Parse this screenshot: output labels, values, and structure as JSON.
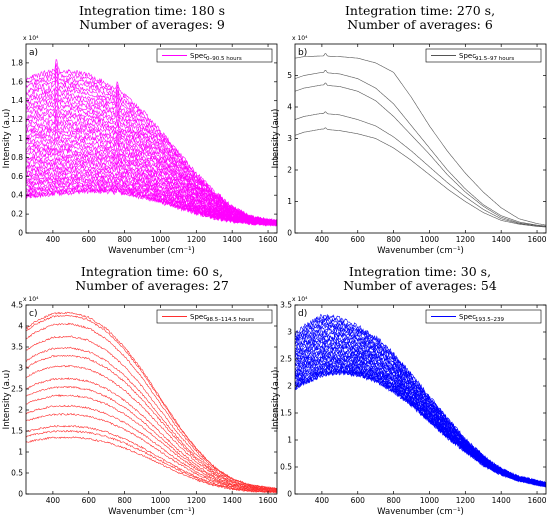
{
  "chart_data": [
    {
      "type": "line",
      "title": [
        "Integration time: 180 s",
        "Number of averages: 9"
      ],
      "panel_label": "a)",
      "legend": {
        "text": "Spec",
        "subscript": "0–90.5 hours",
        "position": "top-right"
      },
      "color": "#ff00ff",
      "xlabel": "Wavenumber (cm⁻¹)",
      "ylabel": "Intensity (a.u)",
      "multiplier": "x 10⁴",
      "xlim": [
        250,
        1650
      ],
      "ylim": [
        0,
        2
      ],
      "xticks": [
        400,
        600,
        800,
        1000,
        1200,
        1400,
        1600
      ],
      "yticks": [
        0,
        0.2,
        0.4,
        0.6,
        0.8,
        1,
        1.2,
        1.4,
        1.6,
        1.8
      ],
      "x": [
        250,
        300,
        400,
        500,
        600,
        700,
        800,
        900,
        1000,
        1100,
        1200,
        1300,
        1400,
        1500,
        1600,
        1650
      ],
      "envelope_upper": [
        1.62,
        1.66,
        1.72,
        1.71,
        1.67,
        1.58,
        1.46,
        1.29,
        1.08,
        0.85,
        0.63,
        0.43,
        0.27,
        0.17,
        0.13,
        0.12
      ],
      "envelope_lower": [
        0.38,
        0.39,
        0.41,
        0.43,
        0.44,
        0.44,
        0.42,
        0.38,
        0.33,
        0.27,
        0.21,
        0.16,
        0.13,
        0.11,
        0.1,
        0.1
      ],
      "series_count": 40,
      "peaks": [
        420,
        760,
        1330
      ]
    },
    {
      "type": "line",
      "title": [
        "Integration time: 270 s,",
        "Number of averages: 6"
      ],
      "panel_label": "b)",
      "legend": {
        "text": "Spec",
        "subscript": "91.5–97 hours",
        "position": "top-right"
      },
      "color": "#555555",
      "xlabel": "Wavenumber (cm⁻¹)",
      "ylabel": "Intensity (a.u)",
      "multiplier": "x 10⁴",
      "xlim": [
        250,
        1650
      ],
      "ylim": [
        0,
        6
      ],
      "xticks": [
        400,
        600,
        800,
        1000,
        1200,
        1400,
        1600
      ],
      "yticks": [
        0,
        1,
        2,
        3,
        4,
        5
      ],
      "x": [
        250,
        300,
        400,
        500,
        600,
        700,
        800,
        900,
        1000,
        1100,
        1200,
        1300,
        1400,
        1500,
        1600,
        1650
      ],
      "series": [
        {
          "values": [
            5.55,
            5.6,
            5.62,
            5.6,
            5.55,
            5.4,
            5.1,
            4.3,
            3.4,
            2.6,
            1.9,
            1.3,
            0.8,
            0.45,
            0.3,
            0.25
          ]
        },
        {
          "values": [
            4.9,
            5.0,
            5.1,
            5.05,
            4.9,
            4.6,
            4.1,
            3.4,
            2.7,
            2.0,
            1.4,
            0.9,
            0.55,
            0.35,
            0.25,
            0.22
          ]
        },
        {
          "values": [
            4.5,
            4.6,
            4.7,
            4.65,
            4.5,
            4.2,
            3.7,
            3.1,
            2.5,
            1.85,
            1.3,
            0.85,
            0.5,
            0.32,
            0.24,
            0.21
          ]
        },
        {
          "values": [
            3.6,
            3.7,
            3.8,
            3.75,
            3.6,
            3.4,
            3.05,
            2.6,
            2.1,
            1.6,
            1.15,
            0.75,
            0.45,
            0.3,
            0.22,
            0.2
          ]
        },
        {
          "values": [
            3.1,
            3.2,
            3.3,
            3.25,
            3.15,
            3.0,
            2.7,
            2.3,
            1.85,
            1.4,
            1.0,
            0.65,
            0.4,
            0.28,
            0.21,
            0.19
          ]
        }
      ],
      "peaks": [
        420
      ]
    },
    {
      "type": "line",
      "title": [
        "Integration time: 60 s,",
        "Number of averages: 27"
      ],
      "panel_label": "c)",
      "legend": {
        "text": "Spec",
        "subscript": "98.5–114.5 hours",
        "position": "top-right"
      },
      "color": "#ff3030",
      "xlabel": "Wavenumber (cm⁻¹)",
      "ylabel": "Intensity (a.u)",
      "multiplier": "x 10⁴",
      "xlim": [
        250,
        1650
      ],
      "ylim": [
        0,
        4.5
      ],
      "xticks": [
        400,
        600,
        800,
        1000,
        1200,
        1400,
        1600
      ],
      "yticks": [
        0,
        0.5,
        1,
        1.5,
        2,
        2.5,
        3,
        3.5,
        4,
        4.5
      ],
      "x": [
        250,
        300,
        400,
        500,
        600,
        700,
        800,
        900,
        1000,
        1100,
        1200,
        1300,
        1400,
        1500,
        1600,
        1650
      ],
      "series_peaks": [
        4.32,
        4.25,
        4.05,
        3.75,
        3.48,
        3.3,
        3.05,
        2.75,
        2.55,
        2.35,
        2.1,
        1.9,
        1.62,
        1.5,
        1.35
      ],
      "shape": [
        0.91,
        0.95,
        0.995,
        1.0,
        0.975,
        0.91,
        0.81,
        0.68,
        0.53,
        0.38,
        0.25,
        0.15,
        0.085,
        0.05,
        0.035,
        0.03
      ],
      "series_count": 15
    },
    {
      "type": "line",
      "title": [
        "Integration time: 30 s,",
        "Number of averages: 54"
      ],
      "panel_label": "d)",
      "legend": {
        "text": "Spec",
        "subscript": "193.5–239",
        "position": "top-right"
      },
      "color": "#0000ff",
      "xlabel": "Wavenumber (cm⁻¹)",
      "ylabel": "Intensity (a.u)",
      "multiplier": "x 10⁴",
      "xlim": [
        250,
        1650
      ],
      "ylim": [
        0,
        3.5
      ],
      "xticks": [
        400,
        600,
        800,
        1000,
        1200,
        1400,
        1600
      ],
      "yticks": [
        0,
        0.5,
        1,
        1.5,
        2,
        2.5,
        3,
        3.5
      ],
      "x": [
        250,
        300,
        400,
        500,
        600,
        700,
        800,
        900,
        1000,
        1100,
        1200,
        1300,
        1400,
        1500,
        1600,
        1650
      ],
      "envelope_upper": [
        2.95,
        3.1,
        3.3,
        3.25,
        3.1,
        2.9,
        2.6,
        2.2,
        1.8,
        1.4,
        1.0,
        0.7,
        0.45,
        0.3,
        0.22,
        0.18
      ],
      "envelope_lower": [
        1.95,
        2.05,
        2.2,
        2.25,
        2.2,
        2.1,
        1.9,
        1.65,
        1.35,
        1.05,
        0.8,
        0.55,
        0.38,
        0.27,
        0.2,
        0.17
      ],
      "series_count": 35
    }
  ]
}
